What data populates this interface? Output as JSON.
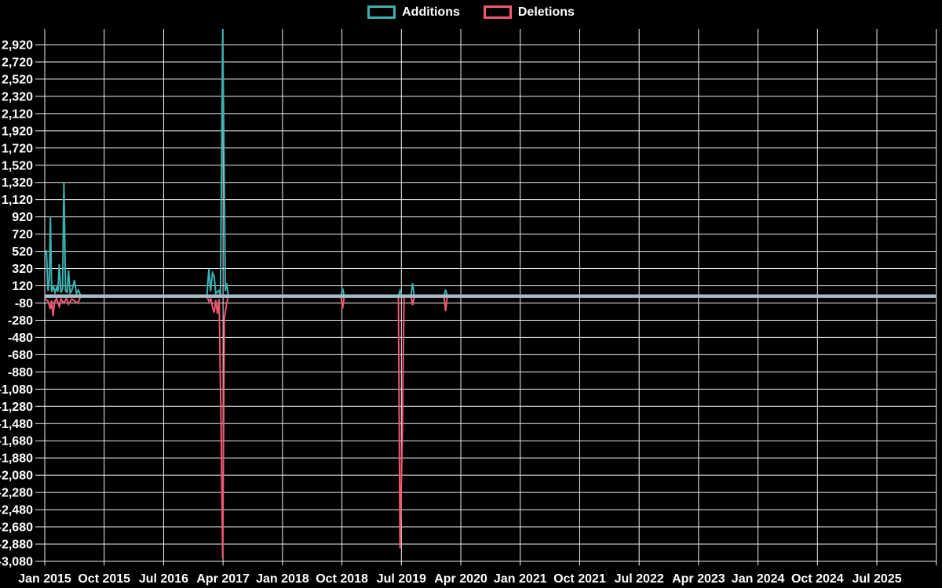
{
  "legend": {
    "items": [
      {
        "label": "Additions",
        "color": "#3cb1b1"
      },
      {
        "label": "Deletions",
        "color": "#f25872"
      }
    ]
  },
  "chart_data": {
    "type": "line",
    "title": "",
    "xlabel": "",
    "ylabel": "",
    "x_axis": {
      "tick_labels": [
        "Jan 2015",
        "Oct 2015",
        "Jul 2016",
        "Apr 2017",
        "Jan 2018",
        "Oct 2018",
        "Jul 2019",
        "Apr 2020",
        "Jan 2021",
        "Oct 2021",
        "Jul 2022",
        "Apr 2023",
        "Jan 2024",
        "Oct 2024",
        "Jul 2025"
      ],
      "months_per_tick": 9,
      "total_months": 135,
      "x_unit": "months since Jan 2015"
    },
    "y_axis": {
      "tick_values": [
        2920,
        2720,
        2520,
        2320,
        2120,
        1920,
        1720,
        1520,
        1320,
        1120,
        920,
        720,
        520,
        320,
        120,
        -80,
        -280,
        -480,
        -680,
        -880,
        -1080,
        -1280,
        -1480,
        -1680,
        -1880,
        -2080,
        -2280,
        -2480,
        -2680,
        -2880,
        -3080
      ],
      "tick_labels": [
        "2,920",
        "2,720",
        "2,520",
        "2,320",
        "2,120",
        "1,920",
        "1,720",
        "1,520",
        "1,320",
        "1,120",
        "920",
        "720",
        "520",
        "320",
        "120",
        "-80",
        "-280",
        "-480",
        "-680",
        "-880",
        "-1,080",
        "-1,280",
        "-1,480",
        "-1,680",
        "-1,880",
        "-2,080",
        "-2,280",
        "-2,480",
        "-2,680",
        "-2,880",
        "-3,080"
      ],
      "ylim": [
        -3100,
        3100
      ]
    },
    "style": {
      "background": "#000000",
      "grid": true,
      "grid_color": "#f0f0f0",
      "zero_line_color": "#a6bcc6",
      "line_width": 2,
      "legend_position": "top-center"
    },
    "series": [
      {
        "name": "Additions",
        "color": "#3cb1b1",
        "points": [
          [
            0,
            480
          ],
          [
            0.25,
            530
          ],
          [
            0.5,
            60
          ],
          [
            0.7,
            210
          ],
          [
            0.85,
            930
          ],
          [
            1.05,
            50
          ],
          [
            1.3,
            120
          ],
          [
            1.55,
            40
          ],
          [
            1.8,
            100
          ],
          [
            2.0,
            50
          ],
          [
            2.2,
            370
          ],
          [
            2.45,
            40
          ],
          [
            2.7,
            90
          ],
          [
            2.9,
            1320
          ],
          [
            3.15,
            60
          ],
          [
            3.4,
            45
          ],
          [
            3.6,
            300
          ],
          [
            3.85,
            35
          ],
          [
            4.1,
            65
          ],
          [
            4.5,
            185
          ],
          [
            4.8,
            30
          ],
          [
            5.1,
            70
          ],
          [
            5.45,
            0
          ],
          [
            24.55,
            0
          ],
          [
            24.85,
            320
          ],
          [
            25.1,
            55
          ],
          [
            25.4,
            270
          ],
          [
            25.65,
            230
          ],
          [
            25.9,
            30
          ],
          [
            26.35,
            65
          ],
          [
            26.6,
            10
          ],
          [
            26.95,
            3100
          ],
          [
            27.15,
            1590
          ],
          [
            27.35,
            60
          ],
          [
            27.55,
            150
          ],
          [
            27.8,
            0
          ],
          [
            44.85,
            0
          ],
          [
            45.1,
            90
          ],
          [
            45.35,
            0
          ],
          [
            53.55,
            0
          ],
          [
            53.8,
            65
          ],
          [
            54.05,
            0
          ],
          [
            55.45,
            0
          ],
          [
            55.7,
            150
          ],
          [
            55.95,
            0
          ],
          [
            60.45,
            0
          ],
          [
            60.7,
            75
          ],
          [
            60.95,
            0
          ],
          [
            135,
            0
          ]
        ]
      },
      {
        "name": "Deletions",
        "color": "#f25872",
        "points": [
          [
            0,
            -25
          ],
          [
            0.5,
            -60
          ],
          [
            0.85,
            -150
          ],
          [
            1.05,
            -50
          ],
          [
            1.25,
            -230
          ],
          [
            1.5,
            -60
          ],
          [
            1.8,
            -30
          ],
          [
            2.2,
            -120
          ],
          [
            2.45,
            -35
          ],
          [
            2.9,
            -80
          ],
          [
            3.3,
            -25
          ],
          [
            3.6,
            -95
          ],
          [
            4.1,
            -35
          ],
          [
            4.5,
            -55
          ],
          [
            5.0,
            -85
          ],
          [
            5.45,
            0
          ],
          [
            24.55,
            0
          ],
          [
            24.85,
            -60
          ],
          [
            25.15,
            -35
          ],
          [
            25.4,
            -125
          ],
          [
            25.65,
            -190
          ],
          [
            25.9,
            -45
          ],
          [
            26.15,
            -205
          ],
          [
            26.4,
            -35
          ],
          [
            26.7,
            -1480
          ],
          [
            26.95,
            -3050
          ],
          [
            27.2,
            -255
          ],
          [
            27.55,
            -85
          ],
          [
            27.8,
            0
          ],
          [
            44.85,
            0
          ],
          [
            45.1,
            -145
          ],
          [
            45.35,
            0
          ],
          [
            53.55,
            0
          ],
          [
            53.8,
            -2930
          ],
          [
            54.15,
            -1570
          ],
          [
            54.4,
            0
          ],
          [
            55.45,
            0
          ],
          [
            55.7,
            -105
          ],
          [
            55.95,
            0
          ],
          [
            60.45,
            0
          ],
          [
            60.7,
            -175
          ],
          [
            60.95,
            0
          ],
          [
            135,
            0
          ]
        ]
      }
    ]
  }
}
